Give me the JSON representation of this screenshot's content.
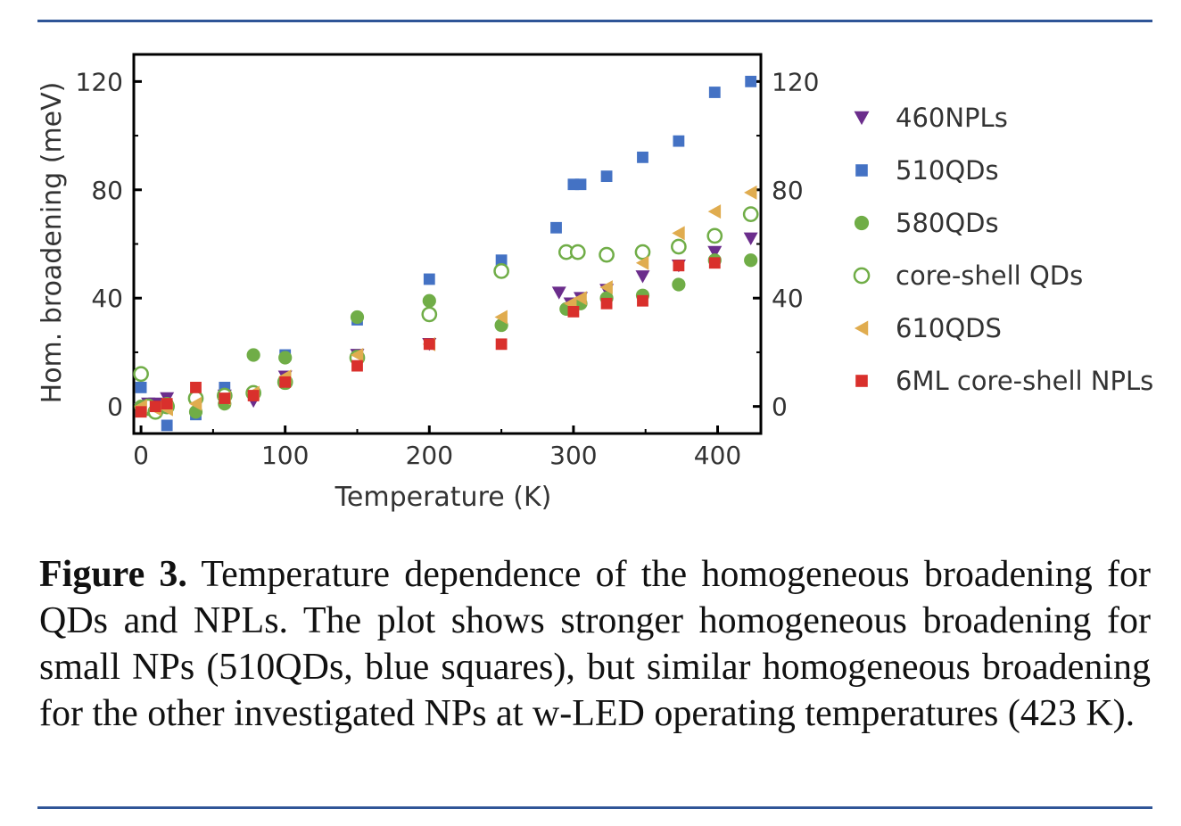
{
  "chart_data": {
    "type": "scatter",
    "xlabel": "Temperature (K)",
    "ylabel": "Hom. broadening (meV)",
    "xlim": [
      -5,
      430
    ],
    "ylim": [
      -10,
      130
    ],
    "xticks": [
      0,
      100,
      200,
      300,
      400
    ],
    "yticks": [
      0,
      40,
      80,
      120
    ],
    "right_yticks": [
      0,
      40,
      80,
      120
    ],
    "legend_position": "right",
    "grid": false,
    "series": [
      {
        "name": "460NPLs",
        "marker": "triangle-down",
        "color": "#6b2d8c",
        "filled": true,
        "x": [
          0,
          5,
          10,
          18,
          38,
          58,
          78,
          100,
          150,
          200,
          290,
          298,
          305,
          323,
          348,
          373,
          398,
          423
        ],
        "y": [
          -1,
          1,
          1,
          3,
          2,
          4,
          2,
          11,
          19,
          23,
          42,
          38,
          40,
          43,
          48,
          52,
          57,
          62
        ]
      },
      {
        "name": "510QDs",
        "marker": "square",
        "color": "#4472c4",
        "filled": true,
        "x": [
          0,
          10,
          18,
          38,
          58,
          100,
          150,
          200,
          250,
          288,
          300,
          305,
          323,
          348,
          373,
          398,
          423
        ],
        "y": [
          7,
          -2,
          -7,
          -3,
          7,
          19,
          32,
          47,
          54,
          66,
          82,
          82,
          85,
          92,
          98,
          116,
          120
        ]
      },
      {
        "name": "580QDs",
        "marker": "circle",
        "color": "#70ad47",
        "filled": true,
        "x": [
          0,
          5,
          10,
          18,
          38,
          58,
          78,
          100,
          150,
          200,
          250,
          295,
          298,
          305,
          323,
          348,
          373,
          398,
          423
        ],
        "y": [
          0,
          -1,
          -2,
          1,
          -2,
          1,
          19,
          18,
          33,
          39,
          30,
          36,
          36,
          38,
          40,
          41,
          45,
          54,
          54
        ]
      },
      {
        "name": "core-shell QDs",
        "marker": "circle",
        "color": "#70ad47",
        "filled": false,
        "x": [
          0,
          5,
          10,
          18,
          38,
          58,
          78,
          100,
          150,
          200,
          250,
          295,
          303,
          323,
          348,
          373,
          398,
          423
        ],
        "y": [
          12,
          0,
          -2,
          0,
          3,
          4,
          5,
          9,
          18,
          34,
          50,
          57,
          57,
          56,
          57,
          59,
          63,
          71
        ]
      },
      {
        "name": "610QDS",
        "marker": "triangle-left",
        "color": "#e0ac4f",
        "filled": true,
        "x": [
          0,
          10,
          18,
          38,
          58,
          78,
          100,
          150,
          200,
          250,
          298,
          305,
          323,
          348,
          373,
          398,
          423
        ],
        "y": [
          0,
          -1,
          -1,
          1,
          3,
          5,
          11,
          19,
          23,
          33,
          38,
          40,
          44,
          53,
          64,
          72,
          79
        ]
      },
      {
        "name": "6ML core-shell NPLs",
        "marker": "square",
        "color": "#d9302c",
        "filled": true,
        "x": [
          0,
          10,
          18,
          38,
          58,
          78,
          100,
          150,
          200,
          250,
          300,
          323,
          348,
          373,
          398
        ],
        "y": [
          -2,
          0,
          1,
          7,
          3,
          4,
          9,
          15,
          23,
          23,
          35,
          38,
          39,
          52,
          53
        ]
      }
    ]
  },
  "caption": {
    "label": "Figure 3.",
    "text": "Temperature dependence of the homogeneous broadening for QDs and NPLs. The plot shows stronger homogeneous broadening for small NPs (510QDs, blue squares), but similar homogeneous broadening for the other investigated NPs at w-LED operating temperatures (423 K)."
  },
  "colors": {
    "rule": "#2f5597",
    "axis": "#000000"
  }
}
